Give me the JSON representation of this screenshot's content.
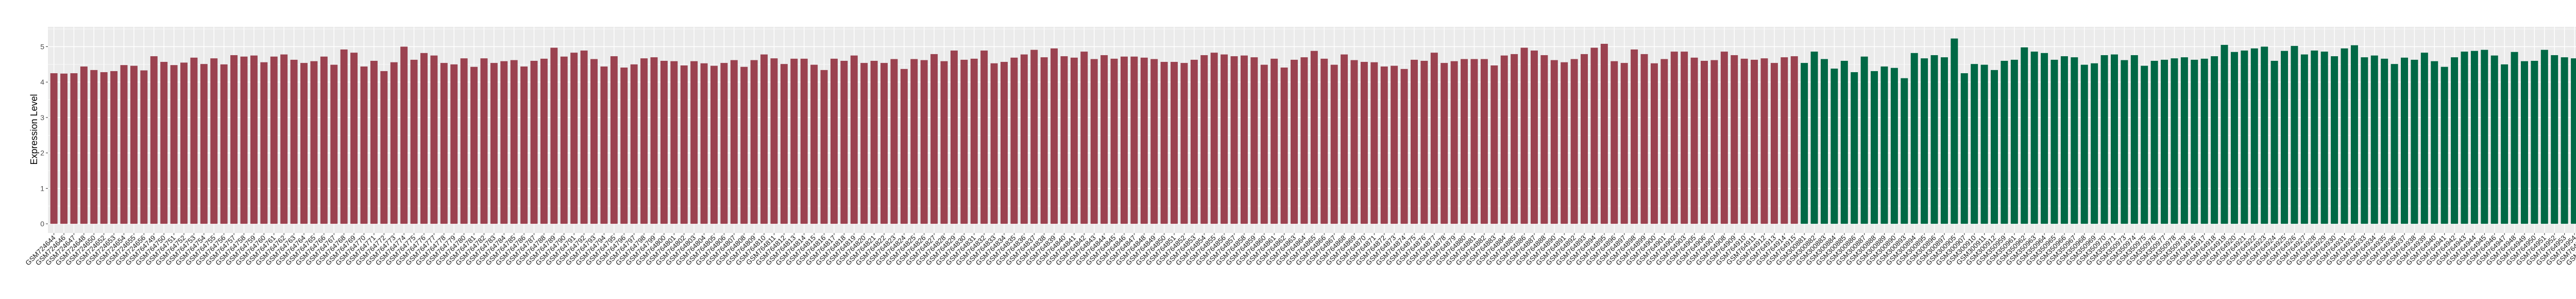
{
  "chart_data": {
    "type": "bar",
    "title": "",
    "xlabel": "",
    "ylabel": "Expression Level",
    "ylim": [
      -0.26,
      5.56
    ],
    "yticks": [
      "0",
      "1",
      "2",
      "3",
      "4",
      "5"
    ],
    "grid": true,
    "legend": "none",
    "panel_background": "#EBEBEB",
    "groups": [
      {
        "color": "#9B4250",
        "categories": [
          "GSM724644",
          "GSM724646",
          "GSM724647",
          "GSM724648",
          "GSM724650",
          "GSM724652",
          "GSM724653",
          "GSM724654",
          "GSM724655",
          "GSM724656",
          "GSM764749",
          "GSM764750",
          "GSM764751",
          "GSM764752",
          "GSM764753",
          "GSM764754",
          "GSM764755",
          "GSM764756",
          "GSM764757",
          "GSM764758",
          "GSM764759",
          "GSM764760",
          "GSM764761",
          "GSM764762",
          "GSM764763",
          "GSM764764",
          "GSM764765",
          "GSM764766",
          "GSM764767",
          "GSM764768",
          "GSM764769",
          "GSM764770",
          "GSM764771",
          "GSM764772",
          "GSM764773",
          "GSM764774",
          "GSM764775",
          "GSM764776",
          "GSM764777",
          "GSM764778",
          "GSM764779",
          "GSM764780",
          "GSM764781",
          "GSM764782",
          "GSM764783",
          "GSM764784",
          "GSM764785",
          "GSM764786",
          "GSM764787",
          "GSM764788",
          "GSM764789",
          "GSM764790",
          "GSM764791",
          "GSM764792",
          "GSM764793",
          "GSM764794",
          "GSM764795",
          "GSM764796",
          "GSM764797",
          "GSM764798",
          "GSM764799",
          "GSM764800",
          "GSM764801",
          "GSM764802",
          "GSM764803",
          "GSM764804",
          "GSM764805",
          "GSM764806",
          "GSM764807",
          "GSM764808",
          "GSM764809",
          "GSM764810",
          "GSM764811",
          "GSM764812",
          "GSM764813",
          "GSM764814",
          "GSM764815",
          "GSM764816",
          "GSM764817",
          "GSM764818",
          "GSM764819",
          "GSM764820",
          "GSM764821",
          "GSM764822",
          "GSM764823",
          "GSM764824",
          "GSM764825",
          "GSM764826",
          "GSM764827",
          "GSM764828",
          "GSM764829",
          "GSM764830",
          "GSM764831",
          "GSM764832",
          "GSM764833",
          "GSM764834",
          "GSM764835",
          "GSM764836",
          "GSM764837",
          "GSM764838",
          "GSM764839",
          "GSM764840",
          "GSM764841",
          "GSM764842",
          "GSM764843",
          "GSM764844",
          "GSM764845",
          "GSM764846",
          "GSM764847",
          "GSM764848",
          "GSM764849",
          "GSM764850",
          "GSM764851",
          "GSM764852",
          "GSM764853",
          "GSM764854",
          "GSM764855",
          "GSM764856",
          "GSM764857",
          "GSM764858",
          "GSM764859",
          "GSM764860",
          "GSM764861",
          "GSM764862",
          "GSM764863",
          "GSM764864",
          "GSM764865",
          "GSM764866",
          "GSM764867",
          "GSM764868",
          "GSM764869",
          "GSM764870",
          "GSM764871",
          "GSM764872",
          "GSM764873",
          "GSM764874",
          "GSM764875",
          "GSM764876",
          "GSM764877",
          "GSM764878",
          "GSM764879",
          "GSM764880",
          "GSM764881",
          "GSM764882",
          "GSM764883",
          "GSM764884",
          "GSM764885",
          "GSM764886",
          "GSM764887",
          "GSM764888",
          "GSM764890",
          "GSM764891",
          "GSM764892",
          "GSM764893",
          "GSM764894",
          "GSM764895",
          "GSM764896",
          "GSM764897",
          "GSM764898",
          "GSM764899",
          "GSM764900",
          "GSM764901",
          "GSM764902",
          "GSM764903",
          "GSM764905",
          "GSM764906",
          "GSM764907",
          "GSM764908",
          "GSM764909",
          "GSM764910",
          "GSM764911",
          "GSM764912",
          "GSM764913",
          "GSM764914",
          "GSM764915"
        ],
        "values": [
          4.25,
          4.24,
          4.25,
          4.44,
          4.34,
          4.28,
          4.31,
          4.48,
          4.46,
          4.33,
          4.73,
          4.57,
          4.48,
          4.55,
          4.69,
          4.51,
          4.67,
          4.5,
          4.76,
          4.72,
          4.75,
          4.56,
          4.72,
          4.78,
          4.63,
          4.54,
          4.59,
          4.72,
          4.49,
          4.92,
          4.83,
          4.44,
          4.6,
          4.31,
          4.56,
          5.0,
          4.63,
          4.82,
          4.75,
          4.54,
          4.5,
          4.67,
          4.43,
          4.67,
          4.54,
          4.59,
          4.62,
          4.44,
          4.6,
          4.66,
          4.97,
          4.72,
          4.83,
          4.89,
          4.65,
          4.44,
          4.73,
          4.41,
          4.5,
          4.67,
          4.7,
          4.6,
          4.59,
          4.47,
          4.59,
          4.53,
          4.46,
          4.54,
          4.62,
          4.43,
          4.62,
          4.78,
          4.67,
          4.51,
          4.66,
          4.66,
          4.49,
          4.34,
          4.66,
          4.6,
          4.75,
          4.54,
          4.6,
          4.54,
          4.65,
          4.37,
          4.65,
          4.62,
          4.79,
          4.59,
          4.89,
          4.63,
          4.66,
          4.89,
          4.53,
          4.57,
          4.69,
          4.78,
          4.91,
          4.7,
          4.95,
          4.73,
          4.69,
          4.86,
          4.65,
          4.76,
          4.66,
          4.72,
          4.72,
          4.69,
          4.65,
          4.57,
          4.57,
          4.54,
          4.63,
          4.76,
          4.83,
          4.78,
          4.73,
          4.75,
          4.7,
          4.49,
          4.66,
          4.41,
          4.63,
          4.7,
          4.88,
          4.66,
          4.49,
          4.78,
          4.62,
          4.57,
          4.56,
          4.44,
          4.46,
          4.37,
          4.63,
          4.6,
          4.83,
          4.54,
          4.59,
          4.65,
          4.65,
          4.65,
          4.47,
          4.75,
          4.79,
          4.97,
          4.89,
          4.76,
          4.62,
          4.56,
          4.65,
          4.79,
          4.97,
          5.08,
          4.59,
          4.54,
          4.92,
          4.79,
          4.53,
          4.65,
          4.86,
          4.86,
          4.69,
          4.6,
          4.62,
          4.86,
          4.76,
          4.66,
          4.63,
          4.67,
          4.54,
          4.7,
          4.73
        ]
      },
      {
        "color": "#006845",
        "categories": [
          "GSM300881",
          "GSM300882",
          "GSM300883",
          "GSM300884",
          "GSM300885",
          "GSM300886",
          "GSM300887",
          "GSM300888",
          "GSM300889",
          "GSM300890",
          "GSM300893",
          "GSM300894",
          "GSM300895",
          "GSM300896",
          "GSM300897",
          "GSM300905",
          "GSM300907",
          "GSM300910",
          "GSM300911",
          "GSM300912",
          "GSM350959",
          "GSM350961",
          "GSM350962",
          "GSM350963",
          "GSM350964",
          "GSM350965",
          "GSM350966",
          "GSM350967",
          "GSM350968",
          "GSM350969",
          "GSM350970",
          "GSM350971",
          "GSM350973",
          "GSM350974",
          "GSM350975",
          "GSM350976",
          "GSM350977",
          "GSM350978",
          "GSM350979",
          "GSM764916",
          "GSM764917",
          "GSM764918",
          "GSM764919",
          "GSM764920",
          "GSM764921",
          "GSM764922",
          "GSM764923",
          "GSM764924",
          "GSM764925",
          "GSM764926",
          "GSM764927",
          "GSM764928",
          "GSM764929",
          "GSM764930",
          "GSM764931",
          "GSM764932",
          "GSM764933",
          "GSM764934",
          "GSM764935",
          "GSM764936",
          "GSM764937",
          "GSM764938",
          "GSM764939",
          "GSM764940",
          "GSM764941",
          "GSM764942",
          "GSM764943",
          "GSM764944",
          "GSM764945",
          "GSM764946",
          "GSM764947",
          "GSM764948",
          "GSM764949",
          "GSM764950",
          "GSM764951",
          "GSM764952",
          "GSM764953",
          "GSM764954",
          "GSM764955",
          "GSM764956",
          "GSM764957",
          "GSM764958",
          "GSM764959",
          "GSM764960",
          "GSM80748",
          "GSM80749"
        ],
        "values": [
          4.54,
          4.86,
          4.65,
          4.38,
          4.6,
          4.28,
          4.72,
          4.31,
          4.44,
          4.4,
          4.11,
          4.82,
          4.67,
          4.76,
          4.7,
          5.23,
          4.25,
          4.51,
          4.49,
          4.34,
          4.6,
          4.63,
          4.98,
          4.86,
          4.82,
          4.63,
          4.73,
          4.7,
          4.49,
          4.53,
          4.76,
          4.78,
          4.62,
          4.76,
          4.46,
          4.6,
          4.63,
          4.67,
          4.7,
          4.63,
          4.66,
          4.73,
          5.05,
          4.85,
          4.89,
          4.95,
          5.0,
          4.6,
          4.88,
          5.02,
          4.78,
          4.89,
          4.86,
          4.73,
          4.95,
          5.04,
          4.7,
          4.75,
          4.66,
          4.51,
          4.69,
          4.63,
          4.83,
          4.59,
          4.43,
          4.7,
          4.86,
          4.88,
          4.91,
          4.75,
          4.5,
          4.85,
          4.59,
          4.6,
          4.91,
          4.76,
          4.7,
          4.67,
          4.97,
          4.82,
          4.79,
          4.83,
          5.04,
          4.49,
          4.94,
          5.2
        ]
      }
    ]
  }
}
